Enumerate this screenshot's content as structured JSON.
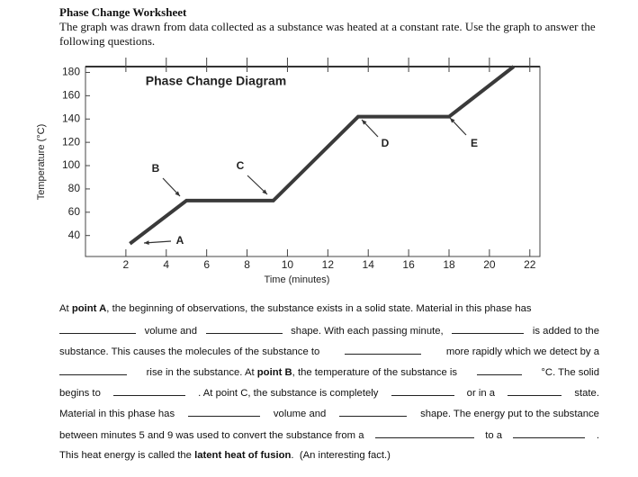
{
  "header": {
    "title": "Phase Change Worksheet",
    "intro": "The graph was drawn from data collected as a substance was heated at a constant rate. Use the graph to answer the following questions."
  },
  "chart_data": {
    "type": "line",
    "title": "Phase Change Diagram",
    "x_label": "Time (minutes)",
    "y_label": "Temperature (°C)",
    "x": [
      2.2,
      5,
      9.3,
      13.5,
      18,
      21.2
    ],
    "values": [
      33,
      70,
      70,
      142,
      142,
      185
    ],
    "color": "#3a3a3a",
    "xlim": [
      0,
      22.5
    ],
    "ylim": [
      22,
      185
    ],
    "xticks": [
      2,
      4,
      6,
      8,
      10,
      12,
      14,
      16,
      18,
      20,
      22
    ],
    "yticks": [
      40,
      60,
      80,
      100,
      120,
      140,
      160,
      180
    ],
    "grid": false,
    "annotations": [
      "A",
      "B",
      "C",
      "D",
      "E"
    ]
  },
  "paragraph": [
    [
      "At ",
      "point A",
      ", the beginning of observations, the substance exists in a solid state. Material in this phase has"
    ],
    [
      "volume and",
      "shape. With each passing minute,",
      "is added to the"
    ],
    [
      "substance. This causes the molecules of the substance to",
      "more rapidly which we detect by a"
    ],
    [
      "rise in the substance. At ",
      "point B",
      ", the temperature of the substance is",
      "°C. The solid"
    ],
    [
      "begins to",
      ". At point C, the substance is completely",
      "or in a",
      "state."
    ],
    [
      "Material in this phase has",
      "volume and",
      "shape. The energy put to the substance"
    ],
    [
      "between minutes 5 and 9 was used to convert the substance from a",
      "to a",
      "."
    ],
    [
      "This heat energy is called the ",
      "latent heat of fusion",
      ".  (An interesting fact.)"
    ]
  ]
}
